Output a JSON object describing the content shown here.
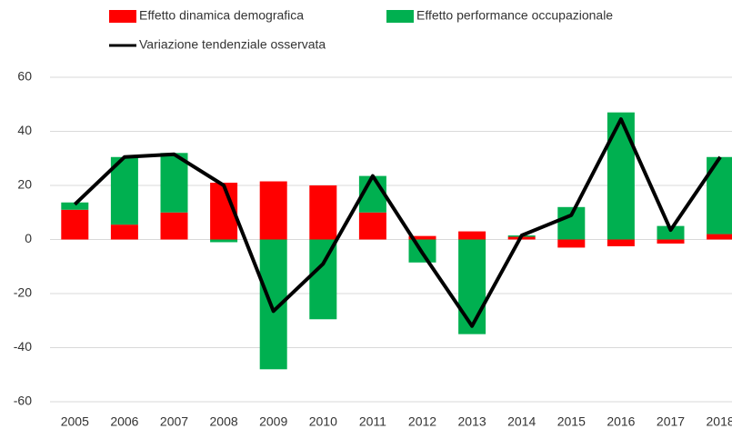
{
  "chart_data": {
    "type": "bar",
    "stacked": true,
    "categories": [
      "2005",
      "2006",
      "2007",
      "2008",
      "2009",
      "2010",
      "2011",
      "2012",
      "2013",
      "2014",
      "2015",
      "2016",
      "2017",
      "2018"
    ],
    "series": [
      {
        "name": "Effetto dinamica demografica",
        "type": "bar",
        "color": "#ff0000",
        "values": [
          11,
          5.5,
          10,
          21,
          21.5,
          20,
          10,
          1.3,
          3,
          1,
          -3,
          -2.5,
          -1.5,
          2
        ]
      },
      {
        "name": "Effetto performance occupazionale",
        "type": "bar",
        "color": "#00b050",
        "values": [
          2.7,
          25,
          22,
          -1,
          -48,
          -29.5,
          13.5,
          -8.5,
          -35,
          0.5,
          12,
          47,
          5,
          28.5
        ]
      },
      {
        "name": "Variazione tendenziale osservata",
        "type": "line",
        "color": "#000000",
        "values": [
          13,
          30.5,
          31.5,
          20,
          -26.5,
          -9,
          23.5,
          -5,
          -32,
          1.5,
          9,
          44.5,
          3.5,
          30.5
        ]
      }
    ],
    "ylim": [
      -60,
      60
    ],
    "yticks": [
      -60,
      -40,
      -20,
      0,
      20,
      40,
      60
    ],
    "grid": true
  }
}
